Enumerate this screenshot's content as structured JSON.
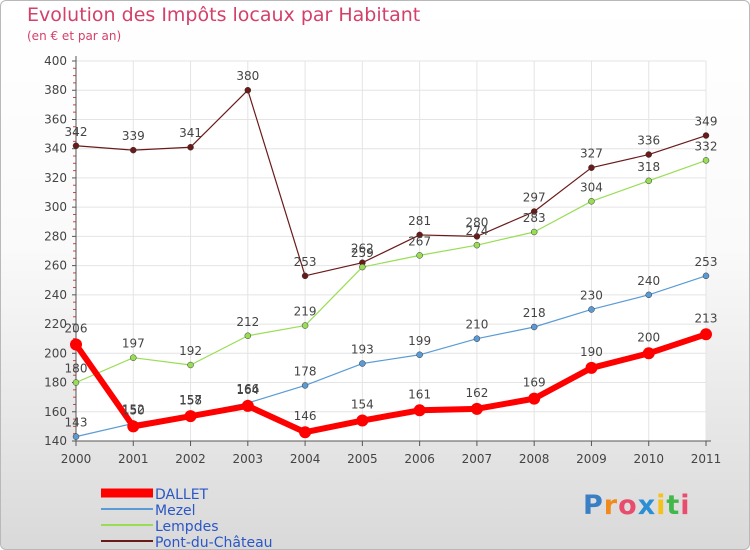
{
  "chart_data": {
    "type": "line",
    "title": "Evolution des Impôts locaux par Habitant",
    "subtitle": "(en € et par an)",
    "xlabel": "",
    "ylabel": "",
    "ylim": [
      140,
      400
    ],
    "yticks": [
      140,
      160,
      180,
      200,
      220,
      240,
      260,
      280,
      300,
      320,
      340,
      360,
      380,
      400
    ],
    "categories": [
      "2000",
      "2001",
      "2002",
      "2003",
      "2004",
      "2005",
      "2006",
      "2007",
      "2008",
      "2009",
      "2010",
      "2011"
    ],
    "legend_position": "bottom-left",
    "series": [
      {
        "name": "Pont-du-Château",
        "color": "#6b1a1a",
        "values": [
          342,
          339,
          341,
          380,
          253,
          262,
          281,
          280,
          297,
          327,
          336,
          349
        ]
      },
      {
        "name": "Lempdes",
        "color": "#99dd55",
        "values": [
          180,
          197,
          192,
          212,
          219,
          259,
          267,
          274,
          283,
          304,
          318,
          332
        ]
      },
      {
        "name": "Mezel",
        "color": "#5a9bd5",
        "values": [
          143,
          152,
          158,
          166,
          178,
          193,
          199,
          210,
          218,
          230,
          240,
          253
        ]
      },
      {
        "name": "DALLET",
        "color": "#ff0000",
        "values": [
          206,
          150,
          157,
          164,
          146,
          154,
          161,
          162,
          169,
          190,
          200,
          213
        ]
      }
    ]
  },
  "legend": [
    {
      "label": "DALLET",
      "color": "#ff0000"
    },
    {
      "label": "Mezel",
      "color": "#5a9bd5"
    },
    {
      "label": "Lempdes",
      "color": "#99dd55"
    },
    {
      "label": "Pont-du-Château",
      "color": "#6b1a1a"
    }
  ],
  "logo": {
    "letters": [
      "P",
      "r",
      "o",
      "x",
      "i",
      "t",
      "i"
    ],
    "colors": [
      "#3a7fc4",
      "#f08a1c",
      "#e94d6e",
      "#2b8fd6",
      "#f5c21b",
      "#43b84a",
      "#e94d6e"
    ]
  }
}
